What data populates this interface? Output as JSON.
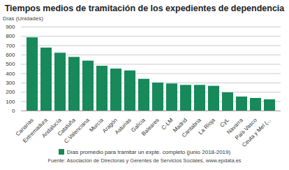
{
  "chart_data": {
    "type": "bar",
    "title": "Tiempos medios de tramitación de los expedientes de dependencia",
    "ylabel": "Días (Unidades)",
    "categories": [
      "Canarias",
      "Extremadura",
      "Andalucía",
      "Cataluña",
      "C.Valenciana",
      "Murcia",
      "Aragón",
      "Asturias",
      "Galicia",
      "Baleares",
      "C-LM",
      "Madrid",
      "Cantabria",
      "La Rioja",
      "CyL",
      "Navarra",
      "País Vasco",
      "Ceuta y Mel (..."
    ],
    "series": [
      {
        "name": "Días promedio para tramitar un expte. completo (junio 2018-2019)",
        "color": "#17895a",
        "values": [
          785,
          675,
          620,
          575,
          535,
          480,
          450,
          430,
          340,
          300,
          290,
          275,
          275,
          265,
          195,
          150,
          135,
          120
        ]
      }
    ],
    "ylim": [
      0,
      900
    ],
    "yticks": [
      0,
      100,
      200,
      300,
      400,
      500,
      600,
      700,
      800,
      900
    ],
    "grid": true,
    "legend": "bottom",
    "caption": "Fuente: Asociación de Directoras y Gerentes de Servicios Sociales, www.epdata.es"
  }
}
